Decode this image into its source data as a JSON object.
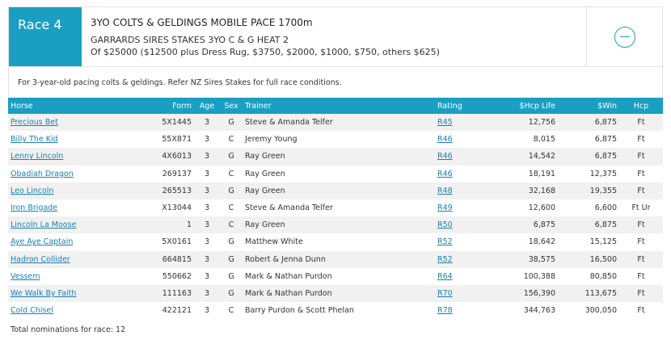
{
  "race": {
    "tab_label": "Race 4",
    "title": "3YO COLTS & GELDINGS MOBILE PACE 1700m",
    "subtitle": "GARRARDS SIRES STAKES 3YO C & G HEAT 2",
    "prize": "Of $25000 ($12500 plus Dress Rug, $3750, $2000, $1000, $750, others $625)",
    "conditions": "For 3-year-old pacing colts & geldings. Refer NZ Sires Stakes for full race conditions.",
    "collapse_icon": "minus-circle-icon"
  },
  "table": {
    "headers": {
      "horse": "Horse",
      "form": "Form",
      "age": "Age",
      "sex": "Sex",
      "trainer": "Trainer",
      "rating": "Rating",
      "hcp_life": "$Hcp Life",
      "win": "$Win",
      "hcp": "Hcp"
    },
    "rows": [
      {
        "horse": "Precious Bet",
        "form": "5X1445",
        "age": "3",
        "sex": "G",
        "trainer": "Steve & Amanda Telfer",
        "rating": "R45",
        "hcp_life": "12,756",
        "win": "6,875",
        "hcp": "Ft"
      },
      {
        "horse": "Billy The Kid",
        "form": "55X871",
        "age": "3",
        "sex": "C",
        "trainer": "Jeremy Young",
        "rating": "R46",
        "hcp_life": "8,015",
        "win": "6,875",
        "hcp": "Ft"
      },
      {
        "horse": "Lenny Lincoln",
        "form": "4X6013",
        "age": "3",
        "sex": "G",
        "trainer": "Ray Green",
        "rating": "R46",
        "hcp_life": "14,542",
        "win": "6,875",
        "hcp": "Ft"
      },
      {
        "horse": "Obadiah Dragon",
        "form": "269137",
        "age": "3",
        "sex": "C",
        "trainer": "Ray Green",
        "rating": "R46",
        "hcp_life": "18,191",
        "win": "12,375",
        "hcp": "Ft"
      },
      {
        "horse": "Leo Lincoln",
        "form": "265513",
        "age": "3",
        "sex": "G",
        "trainer": "Ray Green",
        "rating": "R48",
        "hcp_life": "32,168",
        "win": "19,355",
        "hcp": "Ft"
      },
      {
        "horse": "Iron Brigade",
        "form": "X13044",
        "age": "3",
        "sex": "C",
        "trainer": "Steve & Amanda Telfer",
        "rating": "R49",
        "hcp_life": "12,600",
        "win": "6,600",
        "hcp": "Ft Ur"
      },
      {
        "horse": "Lincoln La Moose",
        "form": "1",
        "age": "3",
        "sex": "C",
        "trainer": "Ray Green",
        "rating": "R50",
        "hcp_life": "6,875",
        "win": "6,875",
        "hcp": "Ft"
      },
      {
        "horse": "Aye Aye Captain",
        "form": "5X0161",
        "age": "3",
        "sex": "G",
        "trainer": "Matthew White",
        "rating": "R52",
        "hcp_life": "18,642",
        "win": "15,125",
        "hcp": "Ft"
      },
      {
        "horse": "Hadron Collider",
        "form": "664815",
        "age": "3",
        "sex": "G",
        "trainer": "Robert & Jenna Dunn",
        "rating": "R52",
        "hcp_life": "38,575",
        "win": "16,500",
        "hcp": "Ft"
      },
      {
        "horse": "Vessem",
        "form": "550662",
        "age": "3",
        "sex": "G",
        "trainer": "Mark & Nathan Purdon",
        "rating": "R64",
        "hcp_life": "100,388",
        "win": "80,850",
        "hcp": "Ft"
      },
      {
        "horse": "We Walk By Faith",
        "form": "111163",
        "age": "3",
        "sex": "G",
        "trainer": "Mark & Nathan Purdon",
        "rating": "R70",
        "hcp_life": "156,390",
        "win": "113,675",
        "hcp": "Ft"
      },
      {
        "horse": "Cold Chisel",
        "form": "422121",
        "age": "3",
        "sex": "C",
        "trainer": "Barry Purdon & Scott Phelan",
        "rating": "R78",
        "hcp_life": "344,763",
        "win": "300,050",
        "hcp": "Ft"
      }
    ],
    "total_label": "Total nominations for race: 12"
  },
  "colors": {
    "accent": "#1a9fc2",
    "link": "#1a7fb0",
    "row_alt": "#f1f1f1"
  }
}
